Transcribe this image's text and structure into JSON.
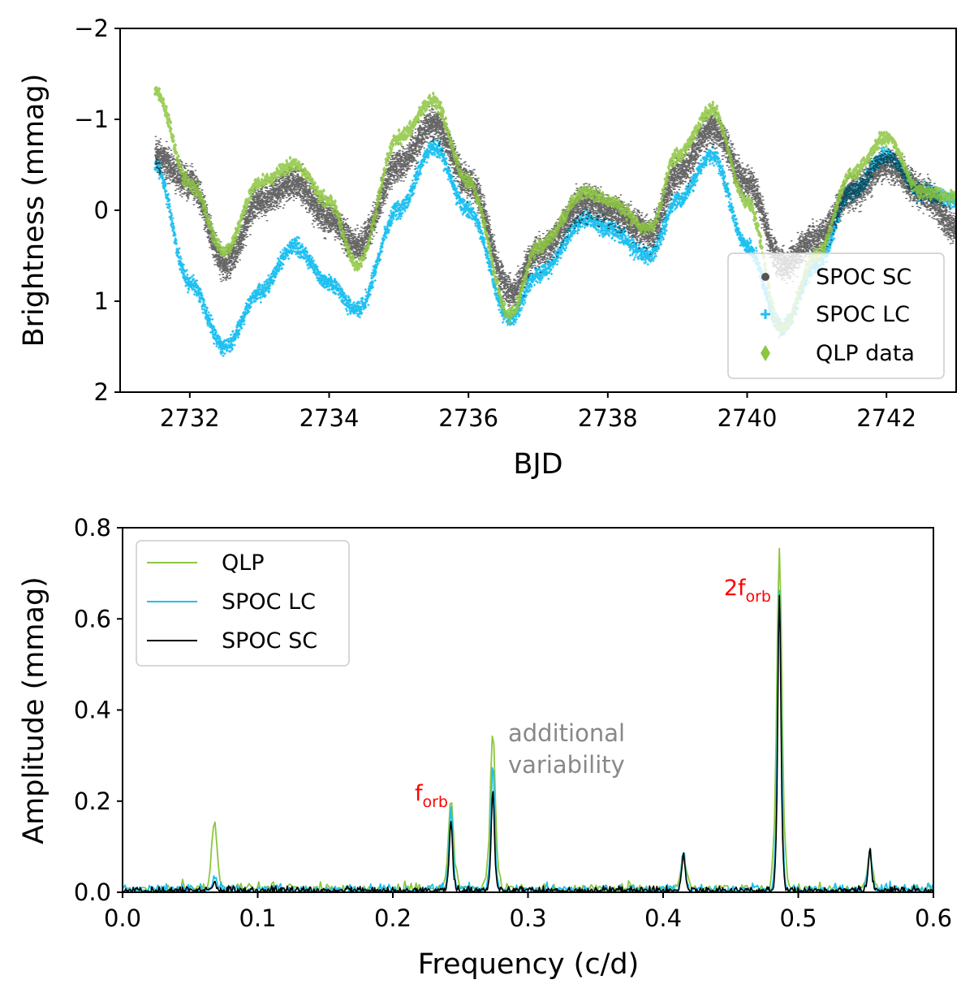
{
  "colors": {
    "qlp": "#8dc63f",
    "spoc_lc": "#1ec0f0",
    "spoc_sc": "#000000",
    "annotation_red": "#ff0000",
    "annotation_grey": "#888888"
  },
  "chart_data": [
    {
      "type": "scatter",
      "title": "",
      "xlabel": "BJD",
      "ylabel": "Brightness (mmag)",
      "xlim": [
        2731.0,
        2743.0
      ],
      "ylim": [
        2,
        -2
      ],
      "y_inverted": true,
      "xticks": [
        2732,
        2734,
        2736,
        2738,
        2740,
        2742
      ],
      "yticks": [
        -2,
        -1,
        0,
        1,
        2
      ],
      "xtick_labels": [
        "2732",
        "2734",
        "2736",
        "2738",
        "2740",
        "2742"
      ],
      "ytick_labels": [
        "−2",
        "−1",
        "0",
        "1",
        "2"
      ],
      "legend_position": "lower-right",
      "grid": false,
      "series": [
        {
          "name": "SPOC SC",
          "marker": "dot",
          "x": [
            2731.5,
            2732.0,
            2732.5,
            2733.0,
            2733.5,
            2734.0,
            2734.4,
            2735.0,
            2735.5,
            2736.0,
            2736.6,
            2737.0,
            2737.7,
            2738.0,
            2738.6,
            2739.0,
            2739.5,
            2740.0,
            2740.5,
            2741.0,
            2741.5,
            2742.0,
            2742.5,
            2743.0
          ],
          "values": [
            -0.6,
            -0.3,
            0.6,
            -0.1,
            -0.3,
            0.1,
            0.4,
            -0.5,
            -0.95,
            -0.3,
            0.9,
            0.45,
            -0.1,
            0.0,
            0.25,
            -0.4,
            -0.9,
            -0.3,
            0.6,
            0.3,
            -0.2,
            -0.5,
            -0.2,
            0.2
          ]
        },
        {
          "name": "SPOC LC",
          "marker": "plus",
          "x": [
            2731.5,
            2732.0,
            2732.5,
            2733.0,
            2733.5,
            2734.0,
            2734.4,
            2735.0,
            2735.5,
            2736.0,
            2736.6,
            2737.0,
            2737.7,
            2738.0,
            2738.6,
            2739.0,
            2739.5,
            2740.0,
            2740.5,
            2741.0,
            2741.5,
            2742.0,
            2742.5,
            2743.0
          ],
          "values": [
            -0.5,
            0.8,
            1.5,
            0.9,
            0.4,
            0.8,
            1.1,
            0.0,
            -0.7,
            0.0,
            1.2,
            0.7,
            0.1,
            0.2,
            0.5,
            -0.1,
            -0.6,
            0.4,
            1.3,
            0.6,
            -0.2,
            -0.6,
            -0.2,
            -0.1
          ]
        },
        {
          "name": "QLP data",
          "marker": "diamond",
          "x": [
            2731.5,
            2732.0,
            2732.5,
            2733.0,
            2733.5,
            2734.0,
            2734.4,
            2735.0,
            2735.5,
            2736.0,
            2736.6,
            2737.0,
            2737.7,
            2738.0,
            2738.6,
            2739.0,
            2739.5,
            2740.0,
            2740.5,
            2741.0,
            2741.5,
            2742.0,
            2742.5,
            2743.0
          ],
          "values": [
            -1.3,
            -0.3,
            0.45,
            -0.3,
            -0.5,
            -0.1,
            0.6,
            -0.8,
            -1.2,
            -0.3,
            1.15,
            0.4,
            -0.2,
            -0.1,
            0.2,
            -0.6,
            -1.1,
            -0.1,
            1.3,
            0.5,
            -0.4,
            -0.8,
            -0.2,
            -0.15
          ]
        }
      ]
    },
    {
      "type": "line",
      "title": "",
      "xlabel": "Frequency (c/d)",
      "ylabel": "Amplitude (mmag)",
      "xlim": [
        0.0,
        0.6
      ],
      "ylim": [
        0.0,
        0.8
      ],
      "xticks": [
        0.0,
        0.1,
        0.2,
        0.3,
        0.4,
        0.5,
        0.6
      ],
      "yticks": [
        0.0,
        0.2,
        0.4,
        0.6,
        0.8
      ],
      "xtick_labels": [
        "0.0",
        "0.1",
        "0.2",
        "0.3",
        "0.4",
        "0.5",
        "0.6"
      ],
      "ytick_labels": [
        "0.0",
        "0.2",
        "0.4",
        "0.6",
        "0.8"
      ],
      "legend_position": "top-left",
      "grid": false,
      "peaks": [
        {
          "freq": 0.068,
          "amplitudes": {
            "QLP": 0.15,
            "SPOC LC": 0.03,
            "SPOC SC": 0.02
          }
        },
        {
          "freq": 0.243,
          "amplitudes": {
            "QLP": 0.2,
            "SPOC LC": 0.18,
            "SPOC SC": 0.155
          }
        },
        {
          "freq": 0.274,
          "amplitudes": {
            "QLP": 0.34,
            "SPOC LC": 0.28,
            "SPOC SC": 0.22
          }
        },
        {
          "freq": 0.415,
          "amplitudes": {
            "QLP": 0.07,
            "SPOC LC": 0.08,
            "SPOC SC": 0.08
          }
        },
        {
          "freq": 0.486,
          "amplitudes": {
            "QLP": 0.75,
            "SPOC LC": 0.66,
            "SPOC SC": 0.645
          }
        },
        {
          "freq": 0.553,
          "amplitudes": {
            "QLP": 0.08,
            "SPOC LC": 0.09,
            "SPOC SC": 0.09
          }
        }
      ],
      "series": [
        {
          "name": "QLP"
        },
        {
          "name": "SPOC LC"
        },
        {
          "name": "SPOC SC"
        }
      ],
      "annotations": [
        {
          "name": "f-orb",
          "text": "f",
          "sub": "orb",
          "freq": 0.243,
          "amp": 0.2
        },
        {
          "name": "2f-orb",
          "text": "2f",
          "sub": "orb",
          "freq": 0.486,
          "amp": 0.66
        },
        {
          "name": "additional-variability",
          "lines": [
            "additional",
            "variability"
          ],
          "freq": 0.285,
          "amp": 0.33
        }
      ]
    }
  ]
}
